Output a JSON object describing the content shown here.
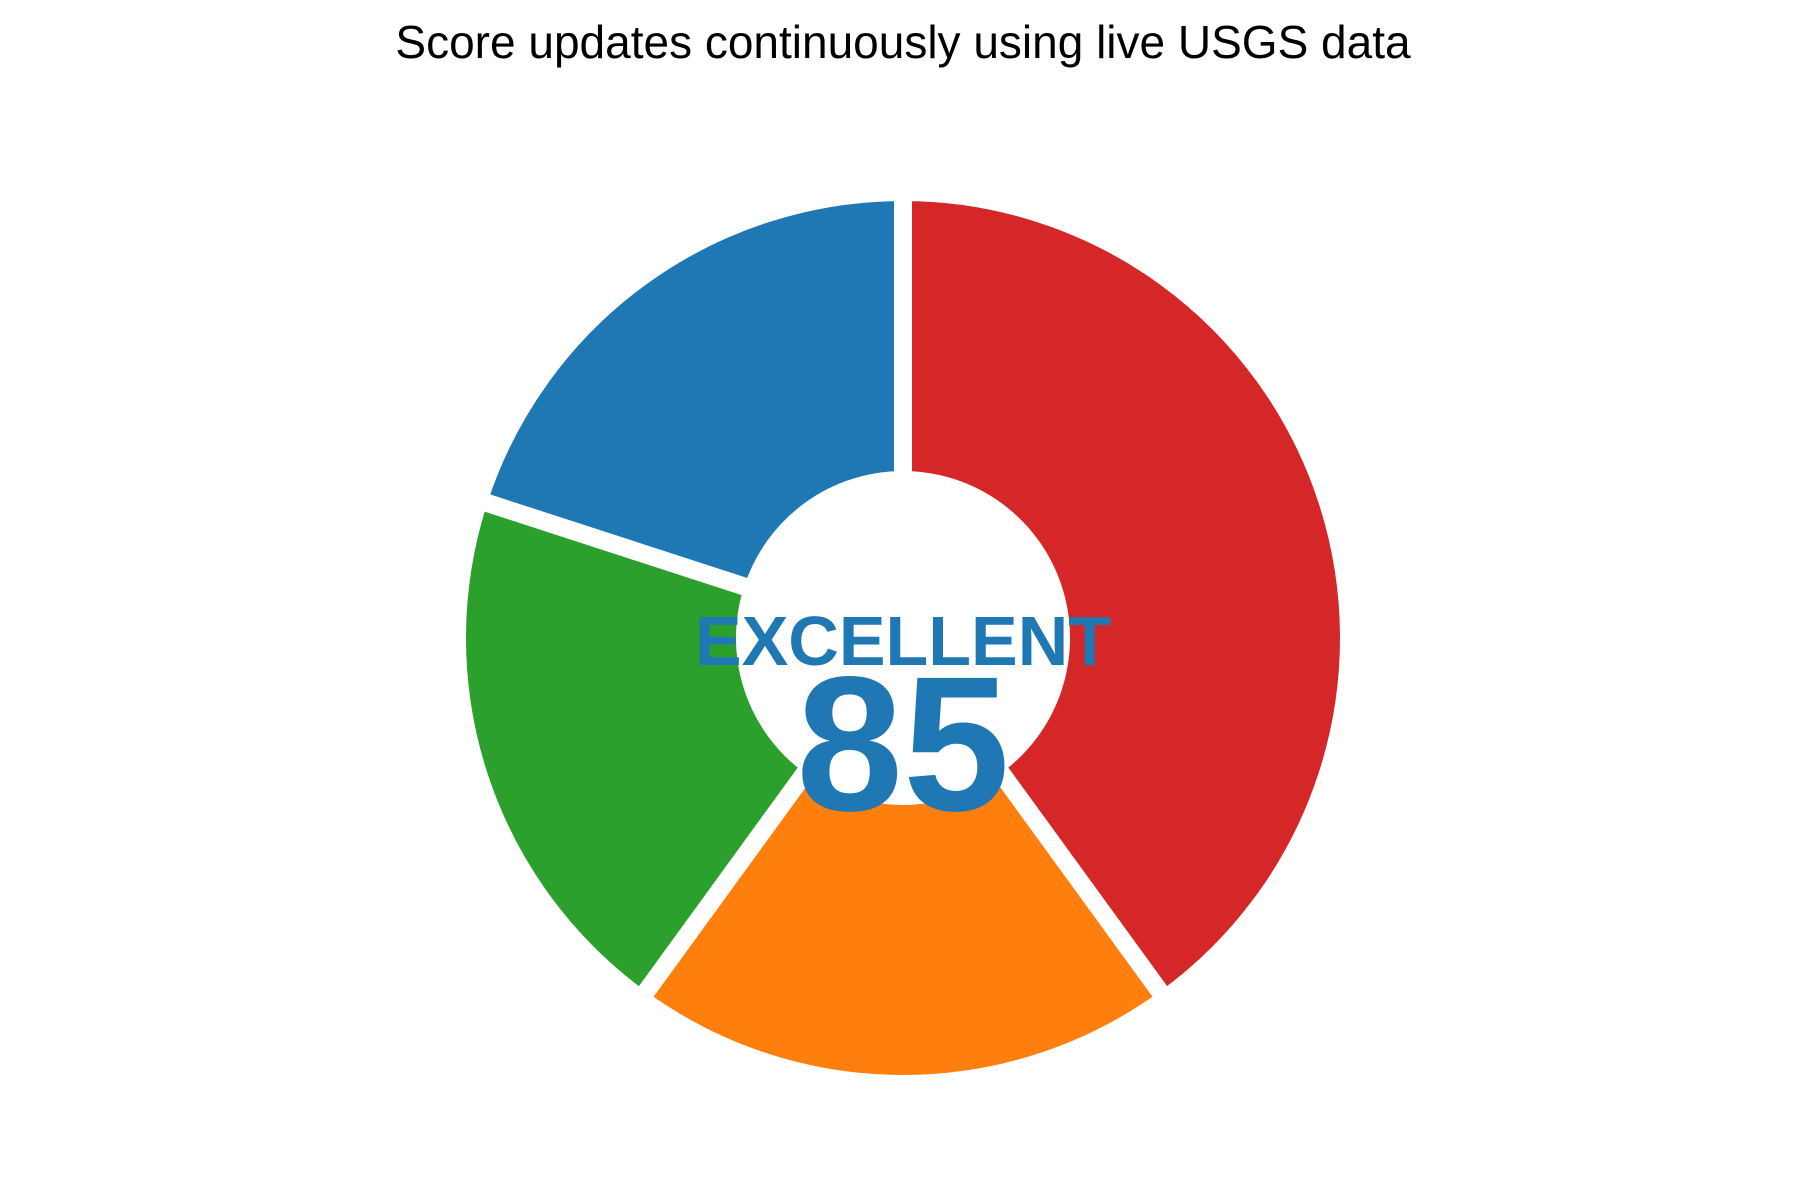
{
  "chart_data": {
    "type": "pie",
    "style": "donut",
    "title": "",
    "subtitle": "Score updates continuously using live USGS data",
    "start": "top, clockwise",
    "slices": [
      {
        "value": 40,
        "color": "#d62728"
      },
      {
        "value": 20,
        "color": "#ff7f0e"
      },
      {
        "value": 20,
        "color": "#2ca02c"
      },
      {
        "value": 20,
        "color": "#1f77b4"
      }
    ],
    "center": {
      "label": "EXCELLENT",
      "value": "85",
      "color": "#1f77b4"
    },
    "separator_color": "#ffffff",
    "legend": "none"
  }
}
